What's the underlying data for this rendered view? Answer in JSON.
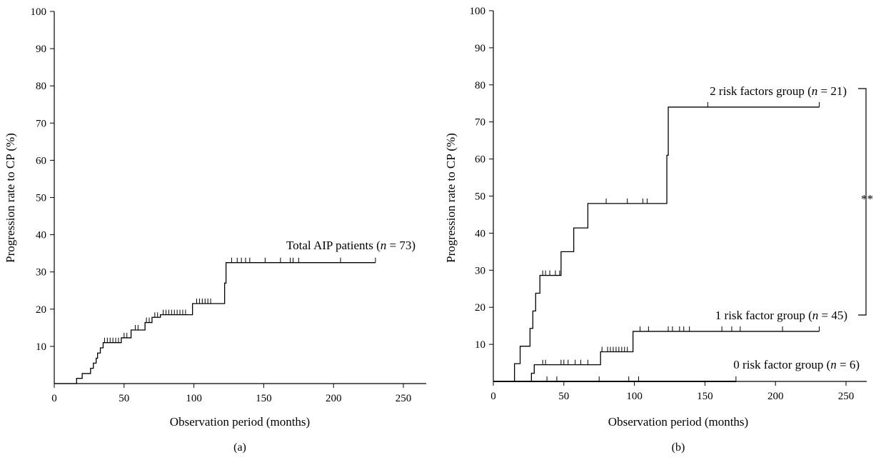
{
  "chart_data": [
    {
      "type": "line",
      "panel_label": "(a)",
      "xlabel": "Observation period (months)",
      "ylabel": "Progression rate to CP (%)",
      "xlim": [
        0,
        260
      ],
      "ylim": [
        0,
        100
      ],
      "xticks": [
        "0",
        "50",
        "100",
        "150",
        "200",
        "250"
      ],
      "yticks": [
        "10",
        "20",
        "30",
        "40",
        "50",
        "60",
        "70",
        "80",
        "90",
        "100"
      ],
      "series": [
        {
          "name_prefix": "Total AIP patients (",
          "name_n": "n",
          "name_suffix": " = 73)",
          "step_x": [
            0,
            16,
            20,
            26,
            28,
            30,
            31,
            33,
            35,
            48,
            55,
            65,
            70,
            76,
            99,
            122,
            123,
            230
          ],
          "step_y": [
            0,
            1.4,
            2.7,
            4.1,
            5.5,
            6.8,
            8.2,
            9.6,
            11.0,
            12.3,
            14.4,
            16.4,
            17.8,
            18.5,
            21.5,
            27,
            32.5,
            32.5
          ],
          "censor_x": [
            36,
            38,
            40,
            42,
            44,
            46,
            50,
            52,
            58,
            60,
            66,
            68,
            72,
            74,
            78,
            80,
            82,
            84,
            86,
            88,
            90,
            92,
            94,
            102,
            104,
            106,
            108,
            110,
            112,
            127,
            131,
            134,
            137,
            140,
            151,
            162,
            169,
            171,
            175,
            205,
            230
          ]
        }
      ]
    },
    {
      "type": "line",
      "panel_label": "(b)",
      "xlabel": "Observation period (months)",
      "ylabel": "Progression rate to CP (%)",
      "xlim": [
        0,
        260
      ],
      "ylim": [
        0,
        100
      ],
      "xticks": [
        "0",
        "50",
        "100",
        "150",
        "200",
        "250"
      ],
      "yticks": [
        "10",
        "20",
        "30",
        "40",
        "50",
        "60",
        "70",
        "80",
        "90",
        "100"
      ],
      "significance": "**",
      "series": [
        {
          "name_prefix": "2 risk factors group (",
          "name_n": "n",
          "name_suffix": " = 21)",
          "step_x": [
            0,
            15,
            19,
            26,
            28,
            30,
            33,
            48,
            57,
            67,
            123,
            124,
            231
          ],
          "step_y": [
            0,
            4.8,
            9.5,
            14.3,
            19.0,
            23.8,
            28.6,
            35.0,
            41.4,
            48.0,
            61.0,
            74.0,
            74.0
          ],
          "censor_x": [
            35,
            37,
            40,
            44,
            47,
            80,
            95,
            106,
            109,
            152,
            231
          ]
        },
        {
          "name_prefix": "1 risk factor group (",
          "name_n": "n",
          "name_suffix": " = 45)",
          "step_x": [
            0,
            27,
            29,
            76,
            99,
            231
          ],
          "step_y": [
            0,
            2.2,
            4.5,
            8.0,
            13.5,
            13.5
          ],
          "censor_x": [
            35,
            37,
            48,
            50,
            53,
            58,
            62,
            67,
            77,
            81,
            83,
            85,
            87,
            89,
            91,
            93,
            95,
            104,
            110,
            124,
            127,
            132,
            135,
            139,
            162,
            169,
            175,
            205,
            231
          ]
        },
        {
          "name_prefix": "0 risk factor group (",
          "name_n": "n",
          "name_suffix": " = 6)",
          "step_x": [
            0,
            172
          ],
          "step_y": [
            0,
            0
          ],
          "censor_x": [
            38,
            45,
            75,
            96,
            103,
            172
          ]
        }
      ]
    }
  ]
}
